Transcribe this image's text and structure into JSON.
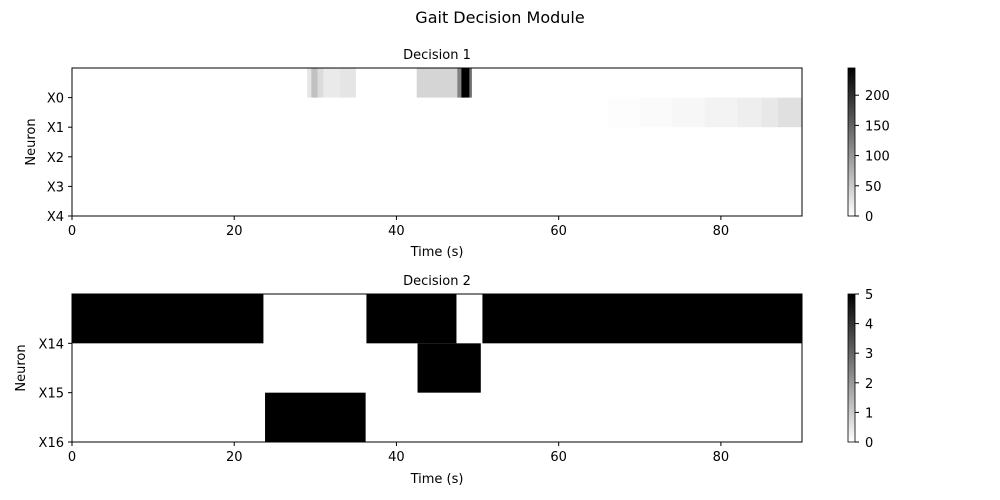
{
  "figure": {
    "title": "Gait Decision Module"
  },
  "chart_data": [
    {
      "type": "heatmap",
      "title": "Decision 1",
      "xlabel": "Time (s)",
      "ylabel": "Neuron",
      "xlim": [
        0,
        90
      ],
      "xticks": [
        0,
        20,
        40,
        60,
        80
      ],
      "ylabels": [
        "X0",
        "X1",
        "X2",
        "X3",
        "X4"
      ],
      "colormap": "gray_r",
      "colorbar": {
        "min": 0,
        "max": 245,
        "ticks": [
          0,
          50,
          100,
          150,
          200
        ]
      },
      "segments": [
        {
          "row": 0,
          "x0": 29.0,
          "x1": 29.5,
          "value": 25
        },
        {
          "row": 0,
          "x0": 29.5,
          "x1": 30.3,
          "value": 60
        },
        {
          "row": 0,
          "x0": 30.3,
          "x1": 31.0,
          "value": 35
        },
        {
          "row": 0,
          "x0": 31.0,
          "x1": 33.0,
          "value": 20
        },
        {
          "row": 0,
          "x0": 33.0,
          "x1": 35.0,
          "value": 25
        },
        {
          "row": 0,
          "x0": 42.5,
          "x1": 47.5,
          "value": 40
        },
        {
          "row": 0,
          "x0": 47.5,
          "x1": 48.0,
          "value": 120
        },
        {
          "row": 0,
          "x0": 48.0,
          "x1": 49.0,
          "value": 245
        },
        {
          "row": 0,
          "x0": 49.0,
          "x1": 49.3,
          "value": 140
        },
        {
          "row": 1,
          "x0": 66.0,
          "x1": 70.0,
          "value": 2
        },
        {
          "row": 1,
          "x0": 70.0,
          "x1": 74.0,
          "value": 5
        },
        {
          "row": 1,
          "x0": 74.0,
          "x1": 78.0,
          "value": 8
        },
        {
          "row": 1,
          "x0": 78.0,
          "x1": 82.0,
          "value": 12
        },
        {
          "row": 1,
          "x0": 82.0,
          "x1": 85.0,
          "value": 16
        },
        {
          "row": 1,
          "x0": 85.0,
          "x1": 87.0,
          "value": 22
        },
        {
          "row": 1,
          "x0": 87.0,
          "x1": 90.0,
          "value": 30
        }
      ]
    },
    {
      "type": "heatmap",
      "title": "Decision 2",
      "xlabel": "Time (s)",
      "ylabel": "Neuron",
      "xlim": [
        0,
        90
      ],
      "xticks": [
        0,
        20,
        40,
        60,
        80
      ],
      "ylabels": [
        "X14",
        "X15",
        "X16"
      ],
      "colormap": "gray_r",
      "colorbar": {
        "min": 0,
        "max": 5,
        "ticks": [
          0,
          1,
          2,
          3,
          4,
          5
        ]
      },
      "segments": [
        {
          "row": 0,
          "x0": 0.0,
          "x1": 23.6,
          "value": 5
        },
        {
          "row": 0,
          "x0": 36.3,
          "x1": 47.4,
          "value": 5
        },
        {
          "row": 0,
          "x0": 50.6,
          "x1": 90.0,
          "value": 5
        },
        {
          "row": 1,
          "x0": 42.6,
          "x1": 50.4,
          "value": 5
        },
        {
          "row": 2,
          "x0": 23.8,
          "x1": 36.2,
          "value": 5
        }
      ]
    }
  ]
}
